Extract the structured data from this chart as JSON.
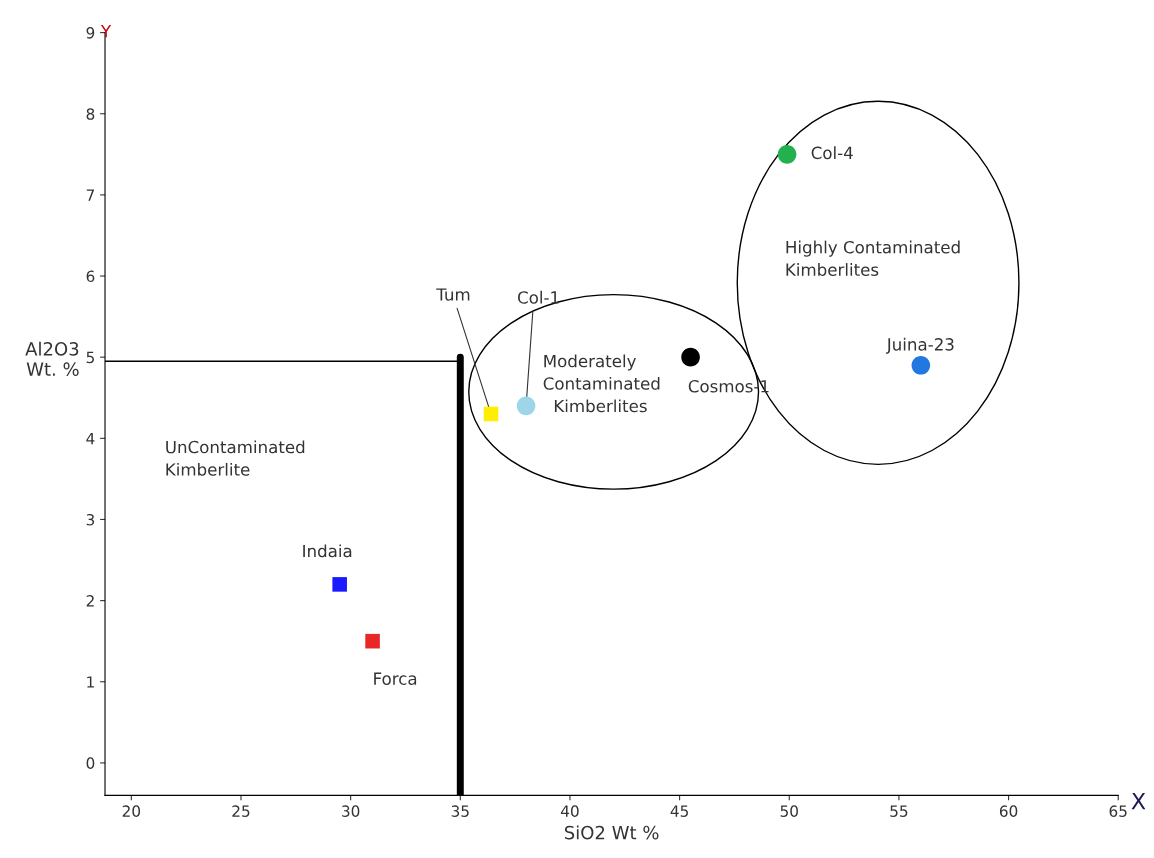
{
  "chart_data": {
    "type": "scatter",
    "xlabel": "SiO2 Wt %",
    "ylabel": "Al2O3\nWt. %",
    "xlim": [
      18.8,
      65
    ],
    "ylim": [
      -0.4,
      9
    ],
    "xticks": [
      20,
      25,
      30,
      35,
      40,
      45,
      50,
      55,
      60,
      65
    ],
    "yticks": [
      0,
      1,
      2,
      3,
      4,
      5,
      6,
      7,
      8,
      9
    ],
    "grid": false,
    "legend": false,
    "series": [
      {
        "marker": "square",
        "x": [
          29.5,
          31.0,
          36.4
        ],
        "values": [
          2.2,
          1.5,
          4.3
        ],
        "colors": [
          "#1a1aff",
          "#e82828",
          "#ffee00"
        ]
      },
      {
        "marker": "circle",
        "x": [
          38.0,
          45.5,
          49.9,
          56.0
        ],
        "values": [
          4.4,
          5.0,
          7.5,
          4.9
        ],
        "colors": [
          "#9dd6e8",
          "#000000",
          "#22b14c",
          "#2277e0"
        ]
      }
    ],
    "ref_lines": [
      {
        "axis": "y",
        "value": 4.95,
        "label": null
      },
      {
        "axis": "x",
        "value": 35,
        "label": null
      }
    ],
    "annotations": [
      {
        "text": "Indaia",
        "x": 29.5,
        "y": 2.2
      },
      {
        "text": "Forca",
        "x": 31.0,
        "y": 1.5
      },
      {
        "text": "Tum",
        "x": 36.4,
        "y": 4.3
      },
      {
        "text": "Col-1",
        "x": 38.0,
        "y": 4.4
      },
      {
        "text": "Cosmos-1",
        "x": 45.5,
        "y": 5.0
      },
      {
        "text": "Col-4",
        "x": 49.9,
        "y": 7.5
      },
      {
        "text": "Juina-23",
        "x": 56.0,
        "y": 4.9
      },
      "UnContaminated\nKimberlite",
      "Moderately\nContaminated\n  Kimberlites",
      "Highly Contaminated\nKimberlites",
      "Y",
      "X"
    ]
  }
}
